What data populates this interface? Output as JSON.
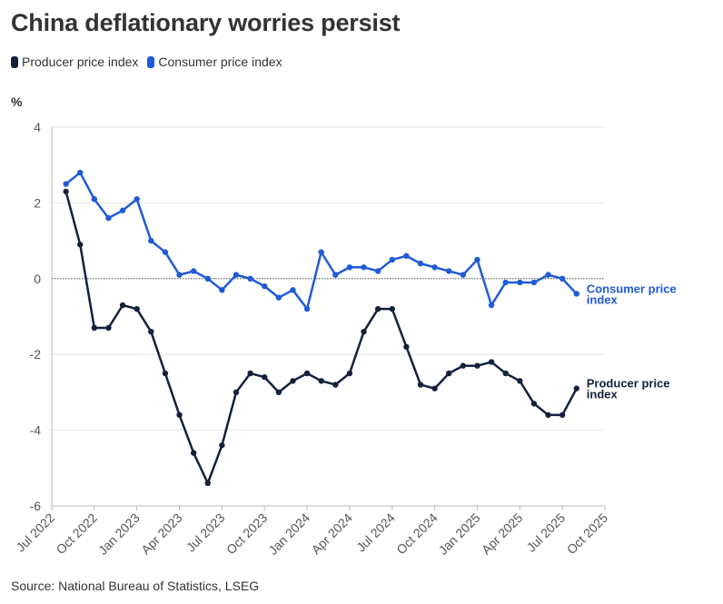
{
  "title": "China deflationary worries persist",
  "unit": "%",
  "source": "Source: National Bureau of Statistics, LSEG",
  "colors": {
    "ppi": "#14213d",
    "cpi": "#1f5bd6",
    "grid": "#e6e6e6",
    "zero": "#444444",
    "axis": "#bbbbbb"
  },
  "legend": [
    {
      "label": "Producer price index",
      "color": "#14213d"
    },
    {
      "label": "Consumer price index",
      "color": "#1f5bd6"
    }
  ],
  "chart_data": {
    "type": "line",
    "title": "China deflationary worries persist",
    "ylabel": "%",
    "xlabel": "",
    "ylim": [
      -6,
      4
    ],
    "yticks": [
      4,
      2,
      0,
      -2,
      -4,
      -6
    ],
    "grid": true,
    "x_start": "Jul 2022",
    "x_ticks": [
      {
        "label": "Jul 2022",
        "month_index": 0
      },
      {
        "label": "Oct 2022",
        "month_index": 3
      },
      {
        "label": "Jan 2023",
        "month_index": 6
      },
      {
        "label": "Apr 2023",
        "month_index": 9
      },
      {
        "label": "Jul 2023",
        "month_index": 12
      },
      {
        "label": "Oct 2023",
        "month_index": 15
      },
      {
        "label": "Jan 2024",
        "month_index": 18
      },
      {
        "label": "Apr 2024",
        "month_index": 21
      },
      {
        "label": "Jul 2024",
        "month_index": 24
      },
      {
        "label": "Oct 2024",
        "month_index": 27
      },
      {
        "label": "Jan 2025",
        "month_index": 30
      },
      {
        "label": "Apr 2025",
        "month_index": 33
      },
      {
        "label": "Jul 2025",
        "month_index": 36
      },
      {
        "label": "Oct 2025",
        "month_index": 39
      }
    ],
    "x_max_index": 39,
    "point_offset": 1,
    "series": [
      {
        "key": "ppi",
        "name": "Producer price index",
        "end_label": [
          "Producer price",
          "index"
        ],
        "values": [
          2.3,
          0.9,
          -1.3,
          -1.3,
          -0.7,
          -0.8,
          -1.4,
          -2.5,
          -3.6,
          -4.6,
          -5.4,
          -4.4,
          -3.0,
          -2.5,
          -2.6,
          -3.0,
          -2.7,
          -2.5,
          -2.7,
          -2.8,
          -2.5,
          -1.4,
          -0.8,
          -0.8,
          -1.8,
          -2.8,
          -2.9,
          -2.5,
          -2.3,
          -2.3,
          -2.2,
          -2.5,
          -2.7,
          -3.3,
          -3.6,
          -3.6,
          -2.9
        ]
      },
      {
        "key": "cpi",
        "name": "Consumer price index",
        "end_label": [
          "Consumer price",
          "index"
        ],
        "values": [
          2.5,
          2.8,
          2.1,
          1.6,
          1.8,
          2.1,
          1.0,
          0.7,
          0.1,
          0.2,
          0.0,
          -0.3,
          0.1,
          0.0,
          -0.2,
          -0.5,
          -0.3,
          -0.8,
          0.7,
          0.1,
          0.3,
          0.3,
          0.2,
          0.5,
          0.6,
          0.4,
          0.3,
          0.2,
          0.1,
          0.5,
          -0.7,
          -0.1,
          -0.1,
          -0.1,
          0.1,
          0.0,
          -0.4
        ]
      }
    ]
  }
}
